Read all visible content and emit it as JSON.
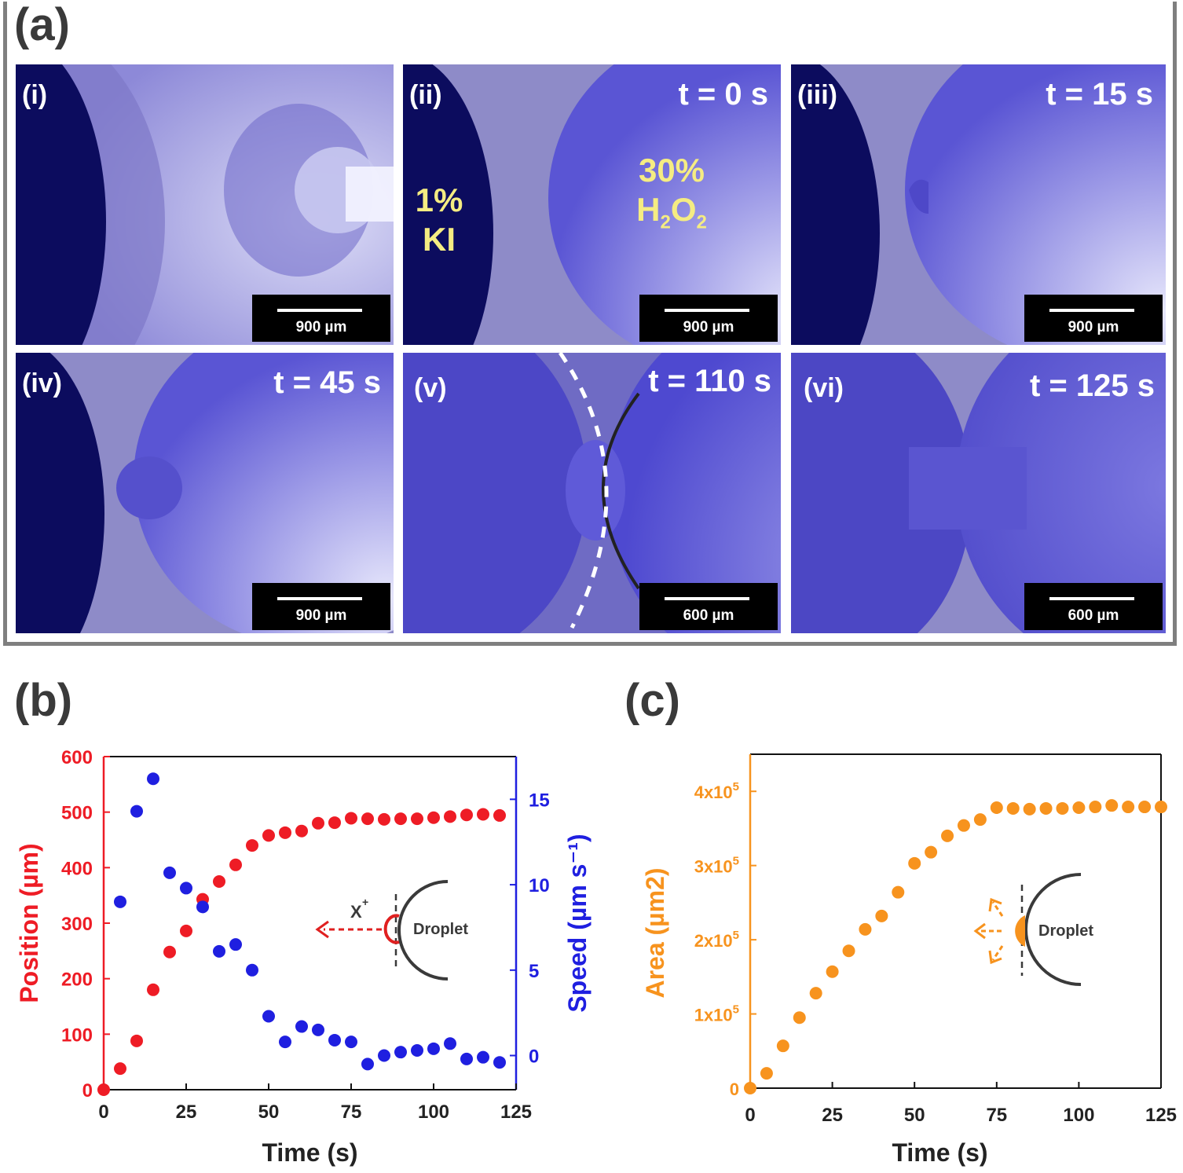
{
  "panel_a": {
    "label": "(a)",
    "frames": [
      {
        "id": "i",
        "label": "(i)",
        "time": "",
        "scale": "900 µm"
      },
      {
        "id": "ii",
        "label": "(ii)",
        "time": "t = 0 s",
        "scale": "900 µm"
      },
      {
        "id": "iii",
        "label": "(iii)",
        "time": "t = 15 s",
        "scale": "900 µm"
      },
      {
        "id": "iv",
        "label": "(iv)",
        "time": "t = 45 s",
        "scale": "900 µm"
      },
      {
        "id": "v",
        "label": "(v)",
        "time": "t = 110 s",
        "scale": "600 µm"
      },
      {
        "id": "vi",
        "label": "(vi)",
        "time": "t = 125 s",
        "scale": "600 µm"
      }
    ],
    "left_droplet_line1": "1%",
    "left_droplet_line2": "KI",
    "right_droplet_line1": "30%",
    "right_droplet_h": "H",
    "right_droplet_sub2": "2",
    "right_droplet_o": "O",
    "colors": {
      "photo_bg": "#8a86d8",
      "dark_droplet": "#0a0a5a",
      "droplet": "#5b56d6",
      "text_yellow": "#f5ec82"
    }
  },
  "panel_b": {
    "label": "(b)",
    "inset_label": "Droplet",
    "inset_flux_x": "X",
    "inset_flux_sup": "+"
  },
  "panel_c": {
    "label": "(c)",
    "inset_label": "Droplet"
  },
  "chart_data": [
    {
      "type": "scatter",
      "panel": "b",
      "xlabel": "Time (s)",
      "xlim": [
        0,
        125
      ],
      "xticks": [
        0,
        25,
        50,
        75,
        100,
        125
      ],
      "series": [
        {
          "axis": "left",
          "color": "#ee1c25",
          "ylabel": "Position (µm)",
          "ylim": [
            0,
            600
          ],
          "yticks": [
            0,
            100,
            200,
            300,
            400,
            500,
            600
          ],
          "x": [
            0,
            5,
            10,
            15,
            20,
            25,
            30,
            35,
            40,
            45,
            50,
            55,
            60,
            65,
            70,
            75,
            80,
            85,
            90,
            95,
            100,
            105,
            110,
            115,
            120
          ],
          "y": [
            0,
            38,
            88,
            180,
            248,
            286,
            343,
            375,
            405,
            440,
            458,
            463,
            466,
            480,
            481,
            489,
            488,
            487,
            488,
            488,
            490,
            492,
            495,
            496,
            494
          ]
        },
        {
          "axis": "right",
          "color": "#1f1fe0",
          "ylabel": "Speed (µm s⁻¹)",
          "ylim": [
            -2,
            17.5
          ],
          "yticks": [
            0,
            5,
            10,
            15
          ],
          "x": [
            5,
            10,
            15,
            20,
            25,
            30,
            35,
            40,
            45,
            50,
            55,
            60,
            65,
            70,
            75,
            80,
            85,
            90,
            95,
            100,
            105,
            110,
            115,
            120
          ],
          "y": [
            9.0,
            14.3,
            16.2,
            10.7,
            9.8,
            8.7,
            6.1,
            6.5,
            5.0,
            2.3,
            0.8,
            1.7,
            1.5,
            0.9,
            0.8,
            -0.5,
            0,
            0.2,
            0.3,
            0.4,
            0.7,
            -0.2,
            -0.1,
            -0.4
          ]
        }
      ]
    },
    {
      "type": "scatter",
      "panel": "c",
      "xlabel": "Time (s)",
      "ylabel": "Area (µm2)",
      "xlim": [
        0,
        125
      ],
      "ylim": [
        0,
        400000
      ],
      "xticks": [
        0,
        25,
        50,
        75,
        100,
        125
      ],
      "yticks": [
        0,
        100000,
        200000,
        300000,
        400000
      ],
      "ytick_labels": [
        "0",
        "1x10",
        "2x10",
        "3x10",
        "4x10"
      ],
      "ytick_exp": "5",
      "color": "#f7931e",
      "x": [
        0,
        5,
        10,
        15,
        20,
        25,
        30,
        35,
        40,
        45,
        50,
        55,
        60,
        65,
        70,
        75,
        80,
        85,
        90,
        95,
        100,
        105,
        110,
        115,
        120,
        125
      ],
      "y": [
        0,
        20000,
        57000,
        95000,
        128000,
        157000,
        185000,
        214000,
        232000,
        264000,
        303000,
        318000,
        340000,
        354000,
        362000,
        378000,
        377000,
        376000,
        377000,
        377000,
        378000,
        379000,
        381000,
        379000,
        379000,
        379000
      ]
    }
  ]
}
